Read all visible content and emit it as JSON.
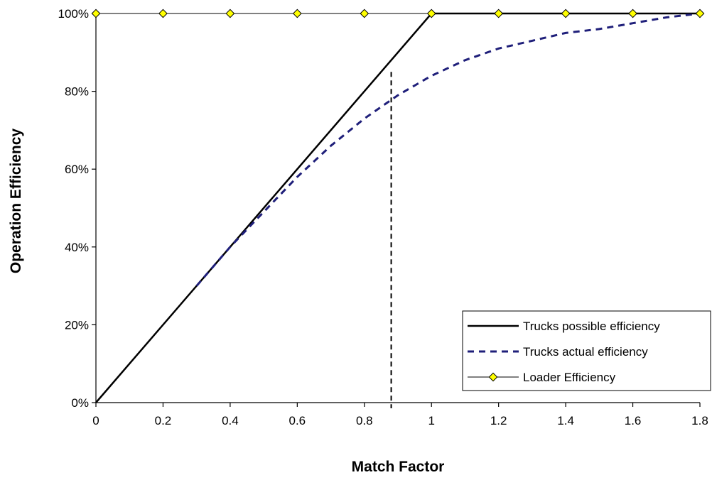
{
  "chart_data": {
    "type": "line",
    "title": "",
    "xlabel": "Match Factor",
    "ylabel": "Operation Efficiency",
    "xlim": [
      0,
      1.8
    ],
    "ylim": [
      0,
      1
    ],
    "x_ticks": [
      "0",
      "0.2",
      "0.4",
      "0.6",
      "0.8",
      "1",
      "1.2",
      "1.4",
      "1.6",
      "1.8"
    ],
    "y_ticks": [
      "0%",
      "20%",
      "40%",
      "60%",
      "80%",
      "100%"
    ],
    "grid": false,
    "legend_position": "bottom-right",
    "reference_line": {
      "x": 0.88,
      "y_range": [
        0,
        0.85
      ],
      "style": "dashed",
      "color": "#000000"
    },
    "series": [
      {
        "name": "Trucks possible efficiency",
        "style": "solid",
        "color": "#000000",
        "x": [
          0,
          1,
          1.8
        ],
        "y": [
          0,
          1,
          1
        ]
      },
      {
        "name": "Trucks actual efficiency",
        "style": "dashed",
        "color": "#1f1f7a",
        "x": [
          0.3,
          0.4,
          0.5,
          0.6,
          0.7,
          0.8,
          0.9,
          1.0,
          1.1,
          1.2,
          1.3,
          1.4,
          1.5,
          1.6,
          1.7,
          1.8
        ],
        "y": [
          0.3,
          0.4,
          0.49,
          0.58,
          0.66,
          0.73,
          0.79,
          0.84,
          0.88,
          0.91,
          0.93,
          0.95,
          0.96,
          0.975,
          0.99,
          1.0
        ]
      },
      {
        "name": "Loader Efficiency",
        "style": "solid-marker",
        "color": "#000000",
        "marker_color": "#ffff00",
        "x": [
          0,
          0.2,
          0.4,
          0.6,
          0.8,
          1.0,
          1.2,
          1.4,
          1.6,
          1.8
        ],
        "y": [
          1,
          1,
          1,
          1,
          1,
          1,
          1,
          1,
          1,
          1
        ]
      }
    ]
  }
}
